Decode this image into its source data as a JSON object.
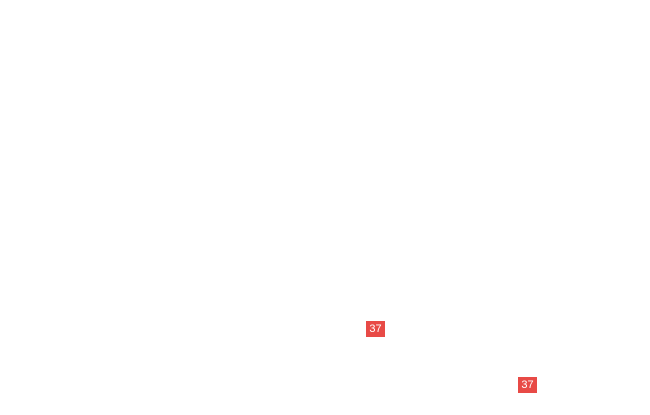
{
  "page": {
    "background_color": "#ffffff"
  },
  "markers": [
    {
      "label": "37",
      "background_color": "#e84a46",
      "text_color": "#ffffff"
    },
    {
      "label": "37",
      "background_color": "#e84a46",
      "text_color": "#ffffff"
    }
  ]
}
